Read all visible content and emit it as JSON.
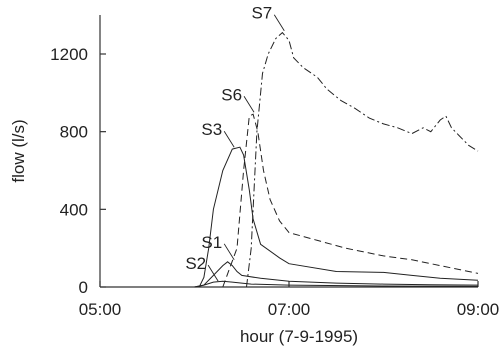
{
  "chart_data": {
    "type": "line",
    "xlabel": "hour  (7-9-1995)",
    "ylabel": "flow (l/s)",
    "x_tick_labels": [
      "05:00",
      "07:00",
      "09:00"
    ],
    "x_tick_hours": [
      5,
      7,
      9
    ],
    "xlim": [
      5,
      9
    ],
    "y_ticks": [
      0,
      400,
      800,
      1200
    ],
    "ylim": [
      0,
      1400
    ],
    "grid": false,
    "legend": "none",
    "series": [
      {
        "name": "S1",
        "style": "solid",
        "label_at": [
          6.42,
          140
        ],
        "points": [
          [
            6.0,
            0
          ],
          [
            6.1,
            10
          ],
          [
            6.2,
            60
          ],
          [
            6.3,
            110
          ],
          [
            6.35,
            130
          ],
          [
            6.4,
            110
          ],
          [
            6.45,
            80
          ],
          [
            6.5,
            60
          ],
          [
            6.7,
            45
          ],
          [
            7.0,
            30
          ],
          [
            7.5,
            20
          ],
          [
            8.0,
            15
          ],
          [
            8.5,
            12
          ],
          [
            9.0,
            10
          ]
        ]
      },
      {
        "name": "S2",
        "style": "solid",
        "label_at": [
          6.25,
          30
        ],
        "points": [
          [
            6.0,
            0
          ],
          [
            6.1,
            10
          ],
          [
            6.2,
            25
          ],
          [
            6.3,
            30
          ],
          [
            6.4,
            25
          ],
          [
            6.6,
            15
          ],
          [
            7.0,
            10
          ],
          [
            8.0,
            5
          ],
          [
            9.0,
            3
          ]
        ]
      },
      {
        "name": "S3",
        "style": "solid",
        "label_at": [
          6.42,
          720
        ],
        "points": [
          [
            6.05,
            0
          ],
          [
            6.1,
            50
          ],
          [
            6.15,
            200
          ],
          [
            6.2,
            400
          ],
          [
            6.3,
            600
          ],
          [
            6.4,
            710
          ],
          [
            6.48,
            720
          ],
          [
            6.52,
            680
          ],
          [
            6.58,
            500
          ],
          [
            6.62,
            350
          ],
          [
            6.7,
            220
          ],
          [
            6.9,
            150
          ],
          [
            7.0,
            120
          ],
          [
            7.5,
            80
          ],
          [
            8.0,
            75
          ],
          [
            8.3,
            60
          ],
          [
            8.6,
            45
          ],
          [
            9.0,
            35
          ]
        ]
      },
      {
        "name": "S6",
        "style": "dash",
        "label_at": [
          6.63,
          900
        ],
        "points": [
          [
            6.3,
            0
          ],
          [
            6.45,
            200
          ],
          [
            6.52,
            600
          ],
          [
            6.58,
            880
          ],
          [
            6.62,
            890
          ],
          [
            6.67,
            800
          ],
          [
            6.73,
            600
          ],
          [
            6.8,
            450
          ],
          [
            6.9,
            340
          ],
          [
            7.0,
            280
          ],
          [
            7.3,
            240
          ],
          [
            7.6,
            200
          ],
          [
            8.0,
            160
          ],
          [
            8.3,
            140
          ],
          [
            8.6,
            110
          ],
          [
            8.8,
            90
          ],
          [
            9.0,
            70
          ]
        ]
      },
      {
        "name": "S7",
        "style": "dashdot",
        "label_at": [
          6.95,
          1320
        ],
        "points": [
          [
            6.55,
            0
          ],
          [
            6.6,
            200
          ],
          [
            6.66,
            800
          ],
          [
            6.72,
            1100
          ],
          [
            6.78,
            1200
          ],
          [
            6.86,
            1280
          ],
          [
            6.93,
            1310
          ],
          [
            7.0,
            1270
          ],
          [
            7.05,
            1180
          ],
          [
            7.15,
            1130
          ],
          [
            7.3,
            1080
          ],
          [
            7.4,
            1020
          ],
          [
            7.55,
            960
          ],
          [
            7.7,
            920
          ],
          [
            7.85,
            870
          ],
          [
            8.0,
            840
          ],
          [
            8.15,
            820
          ],
          [
            8.3,
            790
          ],
          [
            8.42,
            820
          ],
          [
            8.5,
            800
          ],
          [
            8.6,
            860
          ],
          [
            8.66,
            880
          ],
          [
            8.72,
            820
          ],
          [
            8.8,
            780
          ],
          [
            8.9,
            730
          ],
          [
            9.0,
            700
          ]
        ]
      }
    ]
  }
}
